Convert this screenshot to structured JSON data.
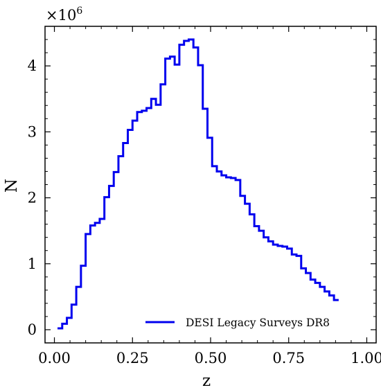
{
  "chart_data": {
    "type": "histogram",
    "xlabel": "z",
    "ylabel": "N",
    "multiplier_base": "×10",
    "multiplier_exp": "6",
    "xlim": [
      -0.03,
      1.03
    ],
    "ylim": [
      -0.2,
      4.6
    ],
    "xticks": [
      0.0,
      0.25,
      0.5,
      0.75,
      1.0
    ],
    "xtick_labels": [
      "0.00",
      "0.25",
      "0.50",
      "0.75",
      "1.00"
    ],
    "yticks": [
      0,
      1,
      2,
      3,
      4
    ],
    "ytick_labels": [
      "0",
      "1",
      "2",
      "3",
      "4"
    ],
    "legend_position": "lower-right",
    "grid": false,
    "series": [
      {
        "name": "DESI Legacy Surveys DR8",
        "color": "#0000ee",
        "step_left": 0.01,
        "step_width": 0.015,
        "values": [
          0.02,
          0.09,
          0.18,
          0.38,
          0.65,
          0.97,
          1.45,
          1.58,
          1.62,
          1.68,
          2.01,
          2.18,
          2.39,
          2.63,
          2.83,
          3.03,
          3.17,
          3.3,
          3.32,
          3.36,
          3.5,
          3.41,
          3.72,
          4.11,
          4.14,
          4.02,
          4.32,
          4.38,
          4.4,
          4.28,
          4.01,
          3.35,
          2.91,
          2.48,
          2.4,
          2.34,
          2.31,
          2.3,
          2.27,
          2.03,
          1.91,
          1.75,
          1.57,
          1.5,
          1.4,
          1.34,
          1.29,
          1.27,
          1.26,
          1.23,
          1.14,
          1.12,
          0.93,
          0.86,
          0.76,
          0.71,
          0.65,
          0.58,
          0.52,
          0.45
        ]
      }
    ]
  }
}
